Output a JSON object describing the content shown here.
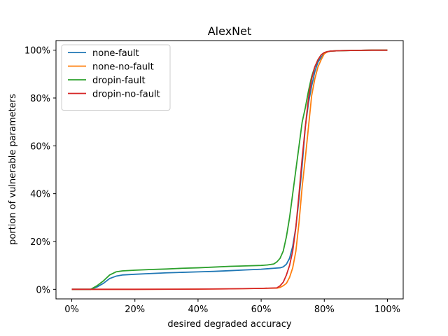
{
  "chart_data": {
    "type": "line",
    "title": "AlexNet",
    "xlabel": "desired degraded accuracy",
    "ylabel": "portion of vulnerable parameters",
    "xlim": [
      -5,
      105
    ],
    "ylim": [
      -4,
      104
    ],
    "xticks": [
      0,
      20,
      40,
      60,
      80,
      100
    ],
    "xtick_labels": [
      "0%",
      "20%",
      "40%",
      "60%",
      "80%",
      "100%"
    ],
    "yticks": [
      0,
      20,
      40,
      60,
      80,
      100
    ],
    "ytick_labels": [
      "0%",
      "20%",
      "40%",
      "60%",
      "80%",
      "100%"
    ],
    "grid": false,
    "legend_position": "top-left",
    "series": [
      {
        "name": "none-fault",
        "color": "#1f77b4",
        "x": [
          0,
          6,
          8,
          10,
          12,
          14,
          16,
          20,
          25,
          30,
          35,
          40,
          45,
          50,
          55,
          60,
          62,
          64,
          66,
          67,
          68,
          69,
          70,
          71,
          72,
          73,
          74,
          75,
          76,
          77,
          78,
          79,
          80,
          81,
          82,
          85,
          90,
          95,
          100
        ],
        "y": [
          0,
          0,
          1,
          2.5,
          4.5,
          5.5,
          6,
          6.3,
          6.6,
          6.9,
          7.1,
          7.3,
          7.5,
          7.8,
          8.1,
          8.4,
          8.6,
          8.8,
          9,
          9.4,
          10.5,
          13,
          18,
          26,
          38,
          52,
          68,
          78,
          85,
          91,
          95,
          97,
          98.6,
          99.3,
          99.6,
          99.8,
          99.9,
          100,
          100
        ]
      },
      {
        "name": "none-no-fault",
        "color": "#ff7f0e",
        "x": [
          0,
          20,
          40,
          50,
          60,
          65,
          66,
          67,
          68,
          69,
          70,
          71,
          72,
          73,
          74,
          75,
          76,
          77,
          78,
          79,
          80,
          81,
          82,
          85,
          90,
          95,
          100
        ],
        "y": [
          0,
          0,
          0.1,
          0.2,
          0.4,
          0.5,
          0.8,
          1.5,
          2.5,
          5,
          9,
          16,
          28,
          43,
          55,
          68,
          81,
          88,
          93,
          96,
          98.5,
          99.3,
          99.6,
          99.8,
          99.9,
          100,
          100
        ]
      },
      {
        "name": "dropin-fault",
        "color": "#2ca02c",
        "x": [
          0,
          6,
          8,
          10,
          12,
          14,
          16,
          20,
          25,
          30,
          35,
          40,
          45,
          50,
          55,
          60,
          62,
          64,
          65,
          66,
          67,
          68,
          69,
          70,
          71,
          72,
          73,
          74,
          75,
          76,
          77,
          78,
          79,
          80,
          81,
          82,
          85,
          90,
          95,
          100
        ],
        "y": [
          0,
          0,
          1.5,
          3.5,
          6,
          7.3,
          7.7,
          8,
          8.3,
          8.5,
          8.8,
          9,
          9.3,
          9.6,
          9.8,
          10,
          10.2,
          10.6,
          11.5,
          13,
          16,
          22,
          30,
          40,
          50,
          60,
          70,
          76,
          83,
          89,
          93,
          96,
          98,
          99,
          99.4,
          99.6,
          99.8,
          99.9,
          100,
          100
        ]
      },
      {
        "name": "dropin-no-fault",
        "color": "#d62728",
        "x": [
          0,
          20,
          40,
          50,
          60,
          65,
          66,
          67,
          68,
          69,
          70,
          71,
          72,
          73,
          74,
          75,
          76,
          77,
          78,
          79,
          80,
          81,
          82,
          85,
          90,
          95,
          100
        ],
        "y": [
          0,
          0,
          0.1,
          0.2,
          0.4,
          0.6,
          1.5,
          3,
          6,
          10,
          16,
          26,
          40,
          55,
          68,
          80,
          88,
          93,
          96,
          98,
          99,
          99.4,
          99.6,
          99.8,
          99.9,
          100,
          100
        ]
      }
    ]
  }
}
